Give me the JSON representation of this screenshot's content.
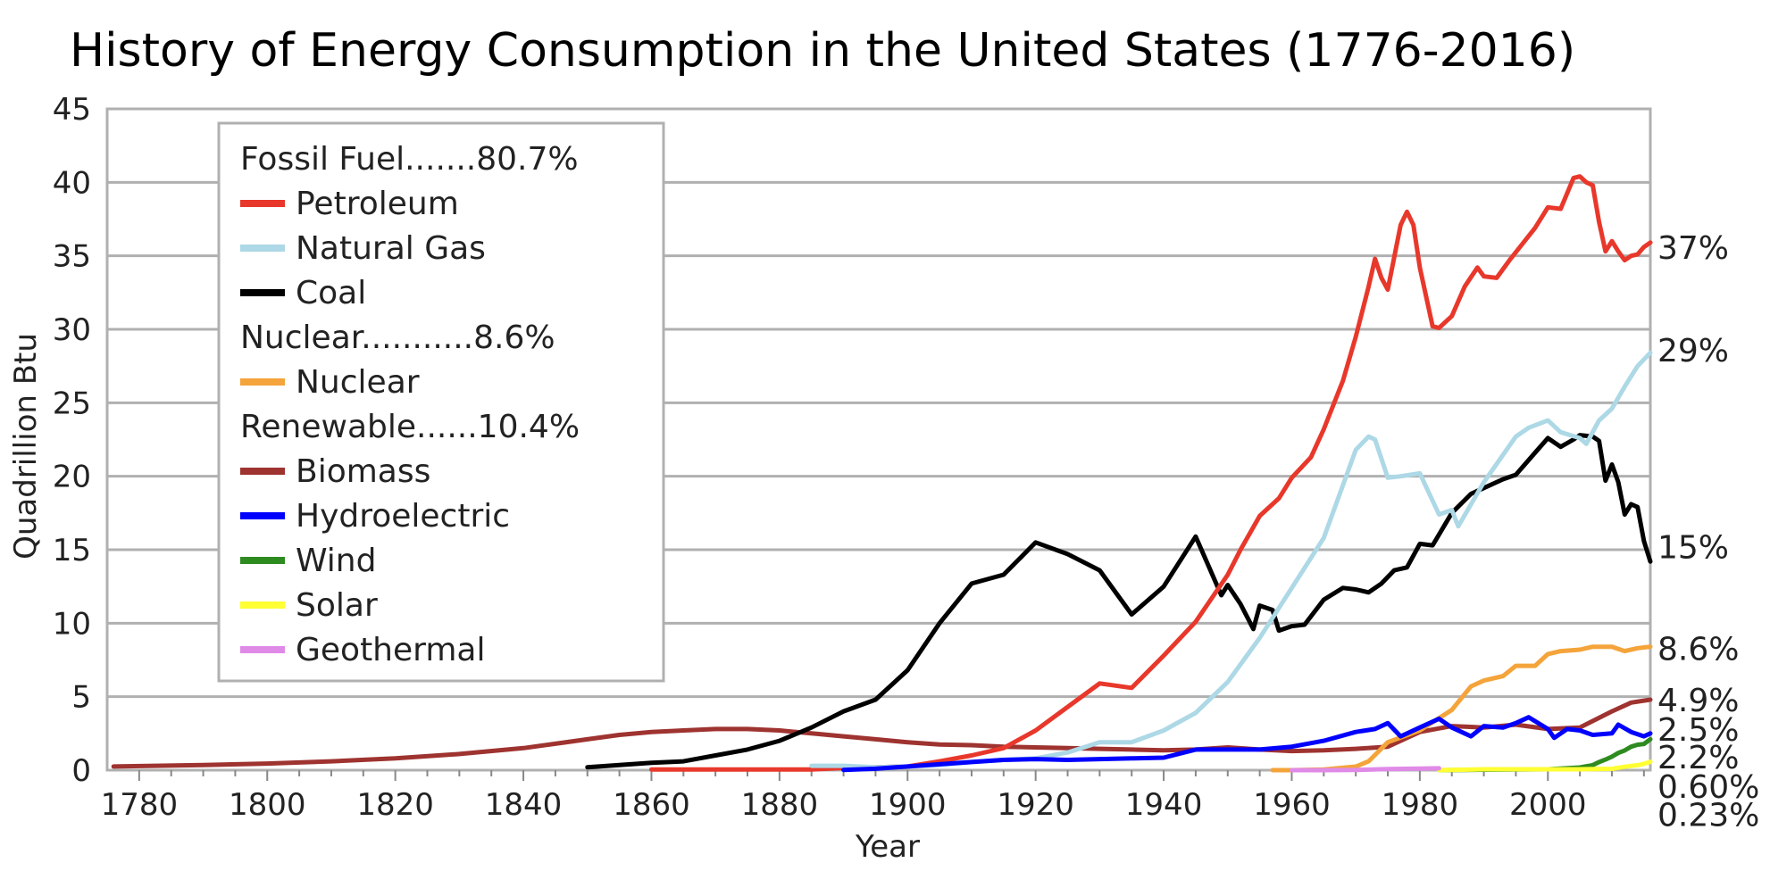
{
  "chart_data": {
    "type": "line",
    "title": "History of Energy Consumption in the United States (1776-2016)",
    "xlabel": "Year",
    "ylabel": "Quadrillion Btu",
    "xlim": [
      1775,
      2016
    ],
    "ylim": [
      0,
      45
    ],
    "x_ticks": [
      1780,
      1800,
      1820,
      1840,
      1860,
      1880,
      1900,
      1920,
      1940,
      1960,
      1980,
      2000
    ],
    "y_ticks": [
      0,
      5,
      10,
      15,
      20,
      25,
      30,
      35,
      40,
      45
    ],
    "grid": "horizontal",
    "legend_position": "top-left",
    "legend": [
      {
        "type": "heading",
        "text": "Fossil Fuel.......80.7%"
      },
      {
        "type": "entry",
        "text": "Petroleum",
        "color": "#e8382b"
      },
      {
        "type": "entry",
        "text": "Natural Gas",
        "color": "#add8e6"
      },
      {
        "type": "entry",
        "text": "Coal",
        "color": "#000000"
      },
      {
        "type": "heading",
        "text": "Nuclear...........8.6%"
      },
      {
        "type": "entry",
        "text": "Nuclear",
        "color": "#f4a43a"
      },
      {
        "type": "heading",
        "text": "Renewable......10.4%"
      },
      {
        "type": "entry",
        "text": "Biomass",
        "color": "#9e3330"
      },
      {
        "type": "entry",
        "text": "Hydroelectric",
        "color": "#0000ff"
      },
      {
        "type": "entry",
        "text": "Wind",
        "color": "#2e8b20"
      },
      {
        "type": "entry",
        "text": "Solar",
        "color": "#ffff33"
      },
      {
        "type": "entry",
        "text": "Geothermal",
        "color": "#e08ae8"
      }
    ],
    "end_labels": [
      {
        "text": "37%",
        "y": 35.6
      },
      {
        "text": "29%",
        "y": 28.6
      },
      {
        "text": "15%",
        "y": 15.2
      },
      {
        "text": "8.6%",
        "y": 8.3
      },
      {
        "text": "4.9%",
        "y": 4.8
      },
      {
        "text": "2.5%",
        "y": 2.8
      },
      {
        "text": "2.2%",
        "y": 0.9
      },
      {
        "text": "0.60%",
        "y": -1.1
      },
      {
        "text": "0.23%",
        "y": -3.0
      }
    ],
    "series": [
      {
        "name": "Biomass",
        "color": "#9e3330",
        "x": [
          1776,
          1790,
          1800,
          1810,
          1820,
          1830,
          1840,
          1845,
          1850,
          1855,
          1860,
          1865,
          1870,
          1875,
          1880,
          1885,
          1890,
          1895,
          1900,
          1905,
          1910,
          1915,
          1920,
          1925,
          1930,
          1935,
          1940,
          1945,
          1950,
          1955,
          1960,
          1965,
          1970,
          1975,
          1980,
          1985,
          1990,
          1995,
          2000,
          2005,
          2010,
          2013,
          2016
        ],
        "y": [
          0.25,
          0.35,
          0.45,
          0.6,
          0.8,
          1.1,
          1.5,
          1.8,
          2.1,
          2.4,
          2.6,
          2.7,
          2.8,
          2.8,
          2.7,
          2.5,
          2.3,
          2.1,
          1.9,
          1.75,
          1.7,
          1.6,
          1.55,
          1.5,
          1.45,
          1.4,
          1.35,
          1.4,
          1.55,
          1.4,
          1.3,
          1.35,
          1.45,
          1.6,
          2.6,
          3.0,
          2.9,
          3.1,
          2.8,
          2.9,
          4.0,
          4.6,
          4.8
        ]
      },
      {
        "name": "Coal",
        "color": "#000000",
        "x": [
          1850,
          1855,
          1860,
          1865,
          1870,
          1875,
          1880,
          1885,
          1890,
          1895,
          1900,
          1905,
          1910,
          1915,
          1920,
          1925,
          1930,
          1935,
          1940,
          1945,
          1949,
          1950,
          1952,
          1954,
          1955,
          1957,
          1958,
          1960,
          1962,
          1965,
          1968,
          1970,
          1972,
          1974,
          1976,
          1978,
          1980,
          1982,
          1985,
          1988,
          1990,
          1993,
          1995,
          1998,
          2000,
          2002,
          2004,
          2005,
          2007,
          2008,
          2009,
          2010,
          2011,
          2012,
          2013,
          2014,
          2015,
          2016
        ],
        "y": [
          0.2,
          0.35,
          0.5,
          0.6,
          1.0,
          1.4,
          2.0,
          2.9,
          4.0,
          4.8,
          6.8,
          10.0,
          12.7,
          13.3,
          15.5,
          14.7,
          13.6,
          10.6,
          12.5,
          15.9,
          11.9,
          12.6,
          11.3,
          9.6,
          11.2,
          10.9,
          9.5,
          9.8,
          9.9,
          11.6,
          12.4,
          12.3,
          12.1,
          12.7,
          13.6,
          13.8,
          15.4,
          15.3,
          17.5,
          18.8,
          19.2,
          19.8,
          20.1,
          21.6,
          22.6,
          22.0,
          22.5,
          22.8,
          22.7,
          22.4,
          19.7,
          20.8,
          19.6,
          17.4,
          18.1,
          17.9,
          15.6,
          14.2
        ]
      },
      {
        "name": "Petroleum",
        "color": "#e8382b",
        "x": [
          1860,
          1870,
          1880,
          1885,
          1890,
          1895,
          1900,
          1905,
          1910,
          1915,
          1920,
          1925,
          1930,
          1935,
          1940,
          1945,
          1950,
          1952,
          1955,
          1958,
          1960,
          1963,
          1965,
          1968,
          1970,
          1972,
          1973,
          1974,
          1975,
          1977,
          1978,
          1979,
          1980,
          1982,
          1983,
          1985,
          1987,
          1989,
          1990,
          1992,
          1994,
          1996,
          1998,
          2000,
          2002,
          2004,
          2005,
          2006,
          2007,
          2008,
          2009,
          2010,
          2011,
          2012,
          2013,
          2014,
          2015,
          2016
        ],
        "y": [
          0.05,
          0.05,
          0.05,
          0.05,
          0.15,
          0.2,
          0.25,
          0.6,
          1.0,
          1.5,
          2.7,
          4.3,
          5.9,
          5.6,
          7.8,
          10.1,
          13.3,
          15.0,
          17.3,
          18.5,
          19.9,
          21.3,
          23.2,
          26.5,
          29.5,
          32.9,
          34.8,
          33.5,
          32.7,
          37.1,
          38.0,
          37.1,
          34.2,
          30.2,
          30.1,
          30.9,
          32.9,
          34.2,
          33.6,
          33.5,
          34.7,
          35.8,
          36.9,
          38.3,
          38.2,
          40.3,
          40.4,
          40.0,
          39.8,
          37.3,
          35.3,
          36.0,
          35.3,
          34.7,
          35.0,
          35.1,
          35.6,
          35.9
        ]
      },
      {
        "name": "Natural Gas",
        "color": "#add8e6",
        "x": [
          1885,
          1890,
          1895,
          1900,
          1905,
          1910,
          1915,
          1920,
          1925,
          1930,
          1935,
          1940,
          1945,
          1950,
          1955,
          1960,
          1965,
          1970,
          1972,
          1973,
          1975,
          1977,
          1980,
          1983,
          1985,
          1986,
          1990,
          1995,
          1997,
          2000,
          2002,
          2005,
          2006,
          2008,
          2010,
          2012,
          2014,
          2016
        ],
        "y": [
          0.3,
          0.3,
          0.2,
          0.25,
          0.35,
          0.55,
          0.7,
          0.8,
          1.2,
          1.9,
          1.9,
          2.7,
          3.9,
          6.0,
          9.0,
          12.4,
          15.8,
          21.8,
          22.7,
          22.5,
          19.9,
          20.0,
          20.2,
          17.4,
          17.7,
          16.6,
          19.6,
          22.7,
          23.3,
          23.8,
          23.0,
          22.6,
          22.2,
          23.8,
          24.6,
          26.1,
          27.5,
          28.4
        ]
      },
      {
        "name": "Nuclear",
        "color": "#f4a43a",
        "x": [
          1957,
          1960,
          1965,
          1970,
          1972,
          1975,
          1980,
          1985,
          1988,
          1990,
          1993,
          1995,
          1998,
          2000,
          2002,
          2005,
          2007,
          2010,
          2012,
          2014,
          2016
        ],
        "y": [
          0.0,
          0.0,
          0.04,
          0.24,
          0.6,
          1.9,
          2.7,
          4.1,
          5.7,
          6.1,
          6.4,
          7.1,
          7.1,
          7.9,
          8.1,
          8.2,
          8.4,
          8.4,
          8.1,
          8.3,
          8.4
        ]
      },
      {
        "name": "Hydroelectric",
        "color": "#0000ff",
        "x": [
          1890,
          1895,
          1900,
          1905,
          1910,
          1915,
          1920,
          1925,
          1930,
          1935,
          1940,
          1945,
          1950,
          1955,
          1960,
          1965,
          1970,
          1973,
          1975,
          1977,
          1980,
          1983,
          1985,
          1988,
          1990,
          1993,
          1995,
          1997,
          2000,
          2001,
          2003,
          2005,
          2007,
          2010,
          2011,
          2013,
          2015,
          2016
        ],
        "y": [
          0.02,
          0.1,
          0.25,
          0.4,
          0.55,
          0.7,
          0.75,
          0.7,
          0.75,
          0.8,
          0.85,
          1.4,
          1.4,
          1.4,
          1.6,
          2.0,
          2.6,
          2.8,
          3.2,
          2.3,
          2.9,
          3.5,
          2.9,
          2.3,
          3.0,
          2.9,
          3.2,
          3.6,
          2.8,
          2.2,
          2.8,
          2.7,
          2.4,
          2.5,
          3.1,
          2.6,
          2.3,
          2.5
        ]
      },
      {
        "name": "Wind",
        "color": "#2e8b20",
        "x": [
          1983,
          1990,
          2000,
          2005,
          2007,
          2008,
          2009,
          2010,
          2011,
          2012,
          2013,
          2014,
          2015,
          2016
        ],
        "y": [
          0.0,
          0.03,
          0.06,
          0.18,
          0.34,
          0.55,
          0.72,
          0.92,
          1.17,
          1.34,
          1.6,
          1.73,
          1.78,
          2.1
        ]
      },
      {
        "name": "Solar",
        "color": "#ffff33",
        "x": [
          1983,
          1990,
          2000,
          2005,
          2010,
          2012,
          2014,
          2015,
          2016
        ],
        "y": [
          0.0,
          0.06,
          0.06,
          0.06,
          0.09,
          0.23,
          0.34,
          0.43,
          0.57
        ]
      },
      {
        "name": "Geothermal",
        "color": "#e08ae8",
        "x": [
          1960,
          1965,
          1970,
          1975,
          1980,
          1983
        ],
        "y": [
          0.0,
          0.0,
          0.01,
          0.07,
          0.11,
          0.13
        ]
      }
    ]
  }
}
